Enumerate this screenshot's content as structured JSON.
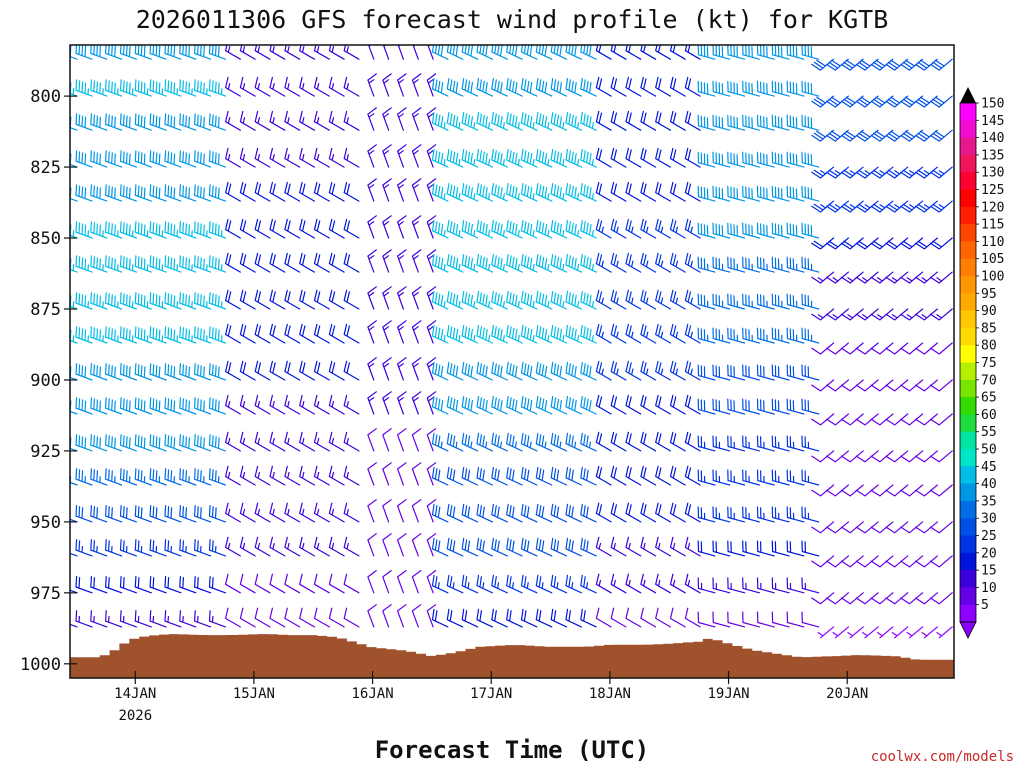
{
  "colors": {
    "terrain": "#a0522d",
    "frame": "#111111",
    "credit": "#c82828"
  },
  "chart_data": {
    "type": "wind-barb-time-height",
    "title": "2026011306 GFS forecast wind profile (kt) for KGTB",
    "xlabel": "Forecast Time (UTC)",
    "ylabel": "",
    "credit": "coolwx.com/models",
    "y_axis": {
      "range_hpa": [
        1005,
        782
      ],
      "ticks": [
        800,
        825,
        850,
        875,
        900,
        925,
        950,
        975,
        1000
      ],
      "tick_labels": [
        "800",
        "825",
        "850",
        "875",
        "900",
        "925",
        "950",
        "975",
        "1000"
      ]
    },
    "x_axis": {
      "range_days_since_14jan00z": [
        -0.55,
        6.9
      ],
      "ticks_days": [
        0,
        1,
        2,
        3,
        4,
        5,
        6
      ],
      "tick_labels": [
        "14JAN",
        "15JAN",
        "16JAN",
        "17JAN",
        "18JAN",
        "19JAN",
        "20JAN"
      ],
      "year_label": "2026"
    },
    "barb_levels_hpa": [
      787,
      800,
      812,
      825,
      837,
      850,
      862,
      875,
      887,
      900,
      912,
      925,
      937,
      950,
      962,
      975,
      987
    ],
    "time_step_days": 0.125,
    "surface_pressure": [
      {
        "t": -0.55,
        "p": 997.7
      },
      {
        "t": -0.3,
        "p": 997.7
      },
      {
        "t": -0.2,
        "p": 996.0
      },
      {
        "t": -0.1,
        "p": 993.0
      },
      {
        "t": 0.0,
        "p": 991.0
      },
      {
        "t": 0.1,
        "p": 990.2
      },
      {
        "t": 0.3,
        "p": 989.5
      },
      {
        "t": 0.6,
        "p": 989.9
      },
      {
        "t": 0.8,
        "p": 989.9
      },
      {
        "t": 1.1,
        "p": 989.5
      },
      {
        "t": 1.3,
        "p": 989.9
      },
      {
        "t": 1.5,
        "p": 989.9
      },
      {
        "t": 1.7,
        "p": 990.6
      },
      {
        "t": 1.85,
        "p": 992.4
      },
      {
        "t": 2.0,
        "p": 994.2
      },
      {
        "t": 2.3,
        "p": 995.5
      },
      {
        "t": 2.5,
        "p": 997.3
      },
      {
        "t": 2.7,
        "p": 996.0
      },
      {
        "t": 2.9,
        "p": 994.0
      },
      {
        "t": 3.2,
        "p": 993.3
      },
      {
        "t": 3.5,
        "p": 994.0
      },
      {
        "t": 3.8,
        "p": 994.0
      },
      {
        "t": 4.0,
        "p": 993.3
      },
      {
        "t": 4.3,
        "p": 993.3
      },
      {
        "t": 4.5,
        "p": 992.9
      },
      {
        "t": 4.75,
        "p": 992.2
      },
      {
        "t": 4.85,
        "p": 990.9
      },
      {
        "t": 5.0,
        "p": 992.9
      },
      {
        "t": 5.2,
        "p": 995.1
      },
      {
        "t": 5.4,
        "p": 996.4
      },
      {
        "t": 5.6,
        "p": 997.7
      },
      {
        "t": 5.9,
        "p": 997.3
      },
      {
        "t": 6.1,
        "p": 996.9
      },
      {
        "t": 6.4,
        "p": 997.3
      },
      {
        "t": 6.6,
        "p": 998.6
      },
      {
        "t": 6.9,
        "p": 998.6
      }
    ],
    "wind_segments": [
      {
        "t0": -0.55,
        "t1": 0.85,
        "dir": 290,
        "speed_by_level": [
          40,
          45,
          40,
          40,
          40,
          45,
          45,
          45,
          45,
          40,
          40,
          40,
          35,
          30,
          25,
          20,
          15
        ]
      },
      {
        "t0": 0.85,
        "t1": 1.9,
        "dir": 300,
        "speed_by_level": [
          15,
          15,
          15,
          15,
          20,
          20,
          20,
          20,
          20,
          20,
          15,
          15,
          15,
          15,
          15,
          10,
          10
        ]
      },
      {
        "t0": 1.9,
        "t1": 2.55,
        "dir": 340,
        "speed_by_level": [
          15,
          15,
          15,
          15,
          15,
          15,
          15,
          15,
          15,
          15,
          15,
          10,
          10,
          10,
          10,
          10,
          10
        ]
      },
      {
        "t0": 2.55,
        "t1": 3.95,
        "dir": 295,
        "speed_by_level": [
          40,
          40,
          45,
          45,
          45,
          45,
          45,
          45,
          45,
          40,
          40,
          35,
          30,
          30,
          30,
          25,
          20
        ]
      },
      {
        "t0": 3.95,
        "t1": 4.85,
        "dir": 300,
        "speed_by_level": [
          20,
          20,
          20,
          20,
          20,
          25,
          25,
          25,
          25,
          25,
          20,
          20,
          20,
          20,
          15,
          15,
          10
        ]
      },
      {
        "t0": 4.85,
        "t1": 5.85,
        "dir": 285,
        "speed_by_level": [
          40,
          40,
          40,
          40,
          40,
          40,
          35,
          35,
          35,
          30,
          30,
          25,
          25,
          25,
          20,
          15,
          10
        ]
      },
      {
        "t0": 5.85,
        "t1": 6.95,
        "dir": 230,
        "speed_by_level": [
          30,
          30,
          30,
          25,
          25,
          20,
          15,
          15,
          10,
          10,
          10,
          10,
          10,
          10,
          10,
          10,
          5
        ]
      }
    ],
    "colorbar": {
      "labels": [
        "150",
        "145",
        "140",
        "135",
        "130",
        "125",
        "120",
        "115",
        "110",
        "105",
        "100",
        "95",
        "90",
        "85",
        "80",
        "75",
        "70",
        "65",
        "60",
        "55",
        "50",
        "45",
        "40",
        "35",
        "30",
        "25",
        "20",
        "15",
        "10",
        "5"
      ],
      "colors": [
        "#ff00ff",
        "#f20cd2",
        "#e6188c",
        "#f0145a",
        "#ff0032",
        "#ff0000",
        "#ff1e00",
        "#ff4600",
        "#ff6400",
        "#ff7d00",
        "#ff9600",
        "#ffaa00",
        "#ffc800",
        "#ffdc00",
        "#ffff00",
        "#b4f000",
        "#78e600",
        "#32dc00",
        "#1edc3c",
        "#00e6a0",
        "#00e6c8",
        "#00bee6",
        "#0096e6",
        "#006ee6",
        "#0050e6",
        "#0032e6",
        "#0014dc",
        "#3c00dc",
        "#6400e6",
        "#8c00ff"
      ]
    }
  }
}
